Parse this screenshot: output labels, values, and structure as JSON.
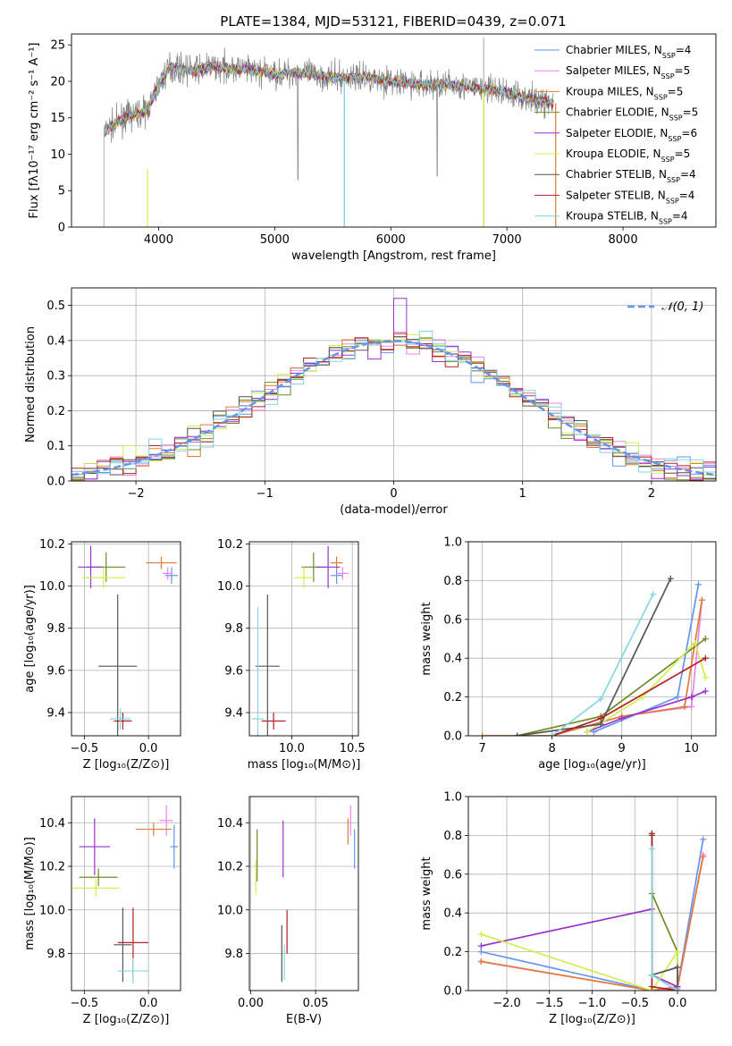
{
  "figure_title": "PLATE=1384, MJD=53121, FIBERID=0439, z=0.071",
  "legend_entries": [
    {
      "label": "Chabrier MILES, N",
      "sub": "SSP",
      "suffix": "=4",
      "color": "#6495ed"
    },
    {
      "label": "Salpeter MILES, N",
      "sub": "SSP",
      "suffix": "=5",
      "color": "#ee82ee"
    },
    {
      "label": "Kroupa MILES, N",
      "sub": "SSP",
      "suffix": "=5",
      "color": "#e07b39"
    },
    {
      "label": "Chabrier ELODIE, N",
      "sub": "SSP",
      "suffix": "=5",
      "color": "#6b8e23"
    },
    {
      "label": "Salpeter ELODIE, N",
      "sub": "SSP",
      "suffix": "=6",
      "color": "#9932cc"
    },
    {
      "label": "Kroupa ELODIE, N",
      "sub": "SSP",
      "suffix": "=5",
      "color": "#d4ed50"
    },
    {
      "label": "Chabrier STELIB, N",
      "sub": "SSP",
      "suffix": "=4",
      "color": "#555555"
    },
    {
      "label": "Salpeter STELIB, N",
      "sub": "SSP",
      "suffix": "=4",
      "color": "#b22222"
    },
    {
      "label": "Kroupa STELIB, N",
      "sub": "SSP",
      "suffix": "=4",
      "color": "#87d7e0"
    }
  ],
  "chart_data": [
    {
      "id": "spectrum",
      "type": "line",
      "xlabel": "wavelength [Angstrom, rest frame]",
      "ylabel": "Flux [fλ10⁻¹⁷ erg cm⁻² s⁻¹ A⁻¹]",
      "xlim": [
        3250,
        8800
      ],
      "ylim": [
        0,
        26.5
      ],
      "xticks": [
        4000,
        5000,
        6000,
        7000,
        8000
      ],
      "yticks": [
        0,
        5,
        10,
        15,
        20,
        25
      ],
      "grid": false,
      "legend_position": "top-right",
      "continuum_x": [
        3530,
        3700,
        3900,
        4000,
        4100,
        4300,
        4500,
        4800,
        5000,
        5200,
        5500,
        5800,
        6000,
        6200,
        6500,
        6800,
        7000,
        7200,
        7400
      ],
      "continuum_y": [
        13,
        15,
        16,
        19.5,
        22,
        21.5,
        22,
        21.5,
        21,
        21.3,
        20.5,
        20.6,
        20,
        19.6,
        19.6,
        19,
        18.5,
        17.6,
        17
      ]
    },
    {
      "id": "residuals",
      "type": "line",
      "xlabel": "(data-model)/error",
      "ylabel": "Normed distribution",
      "xlim": [
        -2.5,
        2.5
      ],
      "ylim": [
        0,
        0.55
      ],
      "xticks": [
        -2,
        -1,
        0,
        1,
        2
      ],
      "yticks": [
        0.0,
        0.1,
        0.2,
        0.3,
        0.4,
        0.5
      ],
      "grid": true,
      "legend_position": "top-right",
      "reference_curve": {
        "label": "𝒩(0, 1)",
        "mean": 0,
        "sigma": 1,
        "color": "#6495ed"
      }
    },
    {
      "id": "age-vs-Z",
      "type": "scatter",
      "xlabel": "Z [log₁₀(Z/Z⊙)]",
      "ylabel": "age  [log₁₀(age/yr)]",
      "xlim": [
        -0.6,
        0.25
      ],
      "ylim": [
        9.29,
        10.21
      ],
      "xticks": [
        -0.5,
        0.0
      ],
      "yticks": [
        9.4,
        9.6,
        9.8,
        10.0,
        10.2
      ],
      "grid": true,
      "points": [
        {
          "series": "Chabrier MILES",
          "x": 0.18,
          "y": 10.05,
          "xerr": 0.05,
          "yerr": 0.04
        },
        {
          "series": "Salpeter MILES",
          "x": 0.15,
          "y": 10.06,
          "xerr": 0.04,
          "yerr": 0.03
        },
        {
          "series": "Kroupa MILES",
          "x": 0.1,
          "y": 10.11,
          "xerr": 0.12,
          "yerr": 0.03
        },
        {
          "series": "Chabrier ELODIE",
          "x": -0.33,
          "y": 10.09,
          "xerr": 0.15,
          "yerr": 0.07
        },
        {
          "series": "Salpeter ELODIE",
          "x": -0.45,
          "y": 10.09,
          "xerr": 0.1,
          "yerr": 0.1
        },
        {
          "series": "Kroupa ELODIE",
          "x": -0.35,
          "y": 10.04,
          "xerr": 0.17,
          "yerr": 0.05
        },
        {
          "series": "Chabrier STELIB",
          "x": -0.24,
          "y": 9.62,
          "xerr": 0.15,
          "yerr": 0.34
        },
        {
          "series": "Salpeter STELIB",
          "x": -0.2,
          "y": 9.36,
          "xerr": 0.07,
          "yerr": 0.04
        },
        {
          "series": "Kroupa STELIB",
          "x": -0.22,
          "y": 9.37,
          "xerr": 0.08,
          "yerr": 0.05
        }
      ]
    },
    {
      "id": "age-vs-mass",
      "type": "scatter",
      "xlabel": "mass [log₁₀(M/M⊙)]",
      "ylabel": "",
      "xlim": [
        9.65,
        10.55
      ],
      "ylim": [
        9.29,
        10.21
      ],
      "xticks": [
        10.0,
        10.5
      ],
      "yticks": [
        9.4,
        9.6,
        9.8,
        10.0,
        10.2
      ],
      "grid": true,
      "points": [
        {
          "series": "Chabrier MILES",
          "x": 10.37,
          "y": 10.05,
          "xerr": 0.05,
          "yerr": 0.04
        },
        {
          "series": "Salpeter MILES",
          "x": 10.42,
          "y": 10.06,
          "xerr": 0.05,
          "yerr": 0.03
        },
        {
          "series": "Kroupa MILES",
          "x": 10.37,
          "y": 10.11,
          "xerr": 0.05,
          "yerr": 0.03
        },
        {
          "series": "Chabrier ELODIE",
          "x": 10.18,
          "y": 10.09,
          "xerr": 0.1,
          "yerr": 0.07
        },
        {
          "series": "Salpeter ELODIE",
          "x": 10.3,
          "y": 10.09,
          "xerr": 0.1,
          "yerr": 0.1
        },
        {
          "series": "Kroupa ELODIE",
          "x": 10.1,
          "y": 10.04,
          "xerr": 0.08,
          "yerr": 0.05
        },
        {
          "series": "Chabrier STELIB",
          "x": 9.8,
          "y": 9.62,
          "xerr": 0.1,
          "yerr": 0.34
        },
        {
          "series": "Salpeter STELIB",
          "x": 9.85,
          "y": 9.36,
          "xerr": 0.1,
          "yerr": 0.04
        },
        {
          "series": "Kroupa STELIB",
          "x": 9.72,
          "y": 9.37,
          "xerr": 0.05,
          "yerr": 0.53
        }
      ]
    },
    {
      "id": "weight-vs-age",
      "type": "line",
      "xlabel": "age  [log₁₀(age/yr)]",
      "ylabel": "mass weight",
      "xlim": [
        6.8,
        10.35
      ],
      "ylim": [
        0,
        1.0
      ],
      "xticks": [
        7,
        8,
        9,
        10
      ],
      "yticks": [
        0.0,
        0.2,
        0.4,
        0.6,
        0.8,
        1.0
      ],
      "grid": true,
      "series": [
        {
          "name": "Chabrier MILES",
          "x": [
            8.6,
            9.8,
            10.1
          ],
          "y": [
            0.02,
            0.2,
            0.78
          ]
        },
        {
          "name": "Salpeter MILES",
          "x": [
            8.0,
            9.0,
            10.0,
            10.15
          ],
          "y": [
            0.0,
            0.1,
            0.15,
            0.7
          ]
        },
        {
          "name": "Kroupa MILES",
          "x": [
            7.0,
            8.0,
            9.0,
            9.9,
            10.15
          ],
          "y": [
            0.0,
            0.0,
            0.1,
            0.15,
            0.7
          ]
        },
        {
          "name": "Chabrier ELODIE",
          "x": [
            7.5,
            8.7,
            10.2
          ],
          "y": [
            0.0,
            0.1,
            0.5
          ]
        },
        {
          "name": "Salpeter ELODIE",
          "x": [
            8.5,
            9.0,
            10.0,
            10.2
          ],
          "y": [
            0.02,
            0.09,
            0.2,
            0.23
          ]
        },
        {
          "name": "Kroupa ELODIE",
          "x": [
            8.5,
            9.3,
            10.05,
            10.2
          ],
          "y": [
            0.02,
            0.2,
            0.48,
            0.3
          ]
        },
        {
          "name": "Chabrier STELIB",
          "x": [
            7.5,
            8.7,
            9.7
          ],
          "y": [
            0.0,
            0.06,
            0.81
          ]
        },
        {
          "name": "Salpeter STELIB",
          "x": [
            8.0,
            8.7,
            10.2
          ],
          "y": [
            0.0,
            0.09,
            0.4
          ]
        },
        {
          "name": "Kroupa STELIB",
          "x": [
            8.0,
            8.7,
            9.45
          ],
          "y": [
            0.0,
            0.19,
            0.73
          ]
        }
      ]
    },
    {
      "id": "mass-vs-Z",
      "type": "scatter",
      "xlabel": "Z [log₁₀(Z/Z⊙)]",
      "ylabel": "mass [log₁₀(M/M⊙)]",
      "xlim": [
        -0.6,
        0.25
      ],
      "ylim": [
        9.63,
        10.52
      ],
      "xticks": [
        -0.5,
        0.0
      ],
      "yticks": [
        9.8,
        10.0,
        10.2,
        10.4
      ],
      "grid": true,
      "points": [
        {
          "series": "Chabrier MILES",
          "x": 0.2,
          "y": 10.29,
          "xerr": 0.03,
          "yerr": 0.1
        },
        {
          "series": "Salpeter MILES",
          "x": 0.14,
          "y": 10.41,
          "xerr": 0.05,
          "yerr": 0.07
        },
        {
          "series": "Kroupa MILES",
          "x": 0.04,
          "y": 10.37,
          "xerr": 0.14,
          "yerr": 0.03
        },
        {
          "series": "Chabrier ELODIE",
          "x": -0.39,
          "y": 10.15,
          "xerr": 0.15,
          "yerr": 0.04
        },
        {
          "series": "Salpeter ELODIE",
          "x": -0.42,
          "y": 10.29,
          "xerr": 0.12,
          "yerr": 0.13
        },
        {
          "series": "Kroupa ELODIE",
          "x": -0.41,
          "y": 10.1,
          "xerr": 0.18,
          "yerr": 0.04
        },
        {
          "series": "Chabrier STELIB",
          "x": -0.2,
          "y": 9.84,
          "xerr": 0.07,
          "yerr": 0.17
        },
        {
          "series": "Salpeter STELIB",
          "x": -0.12,
          "y": 9.85,
          "xerr": 0.12,
          "yerr": 0.16
        },
        {
          "series": "Kroupa STELIB",
          "x": -0.12,
          "y": 9.72,
          "xerr": 0.12,
          "yerr": 0.06
        }
      ]
    },
    {
      "id": "mass-vs-EBV",
      "type": "scatter",
      "xlabel": "E(B-V)",
      "ylabel": "",
      "xlim": [
        -0.001,
        0.083
      ],
      "ylim": [
        9.63,
        10.52
      ],
      "xticks": [
        0.0,
        0.05
      ],
      "tick_labels": [
        "0.00",
        "0.05"
      ],
      "yticks": [
        9.8,
        10.0,
        10.2,
        10.4
      ],
      "grid": true,
      "points": [
        {
          "series": "Chabrier MILES",
          "x": 0.08,
          "y": 10.28,
          "yerr": 0.09
        },
        {
          "series": "Salpeter MILES",
          "x": 0.077,
          "y": 10.41,
          "yerr": 0.07
        },
        {
          "series": "Kroupa MILES",
          "x": 0.075,
          "y": 10.36,
          "yerr": 0.06
        },
        {
          "series": "Chabrier ELODIE",
          "x": 0.005,
          "y": 10.25,
          "yerr": 0.12
        },
        {
          "series": "Salpeter ELODIE",
          "x": 0.025,
          "y": 10.28,
          "yerr": 0.13
        },
        {
          "series": "Kroupa ELODIE",
          "x": 0.004,
          "y": 10.15,
          "yerr": 0.08
        },
        {
          "series": "Chabrier STELIB",
          "x": 0.024,
          "y": 9.8,
          "yerr": 0.13
        },
        {
          "series": "Salpeter STELIB",
          "x": 0.028,
          "y": 9.9,
          "yerr": 0.1
        },
        {
          "series": "Kroupa STELIB",
          "x": 0.026,
          "y": 9.76,
          "yerr": 0.08
        }
      ]
    },
    {
      "id": "weight-vs-Z",
      "type": "line",
      "xlabel": "Z [log₁₀(Z/Z⊙)]",
      "ylabel": "mass weight",
      "xlim": [
        -2.45,
        0.45
      ],
      "ylim": [
        0,
        1.0
      ],
      "xticks": [
        -2.0,
        -1.5,
        -1.0,
        -0.5,
        0.0
      ],
      "tick_labels": [
        "−2.0",
        "−1.5",
        "−1.0",
        "−0.5",
        "0.0"
      ],
      "yticks": [
        0.0,
        0.2,
        0.4,
        0.6,
        0.8,
        1.0
      ],
      "grid": true,
      "series": [
        {
          "name": "Chabrier MILES",
          "x": [
            -2.3,
            -0.3,
            0.0,
            0.3
          ],
          "y": [
            0.2,
            0.0,
            0.02,
            0.78
          ]
        },
        {
          "name": "Salpeter MILES",
          "x": [
            -2.3,
            -0.3,
            0.0,
            0.3
          ],
          "y": [
            0.15,
            0.0,
            0.01,
            0.7
          ]
        },
        {
          "name": "Kroupa MILES",
          "x": [
            -2.3,
            -0.3,
            0.0,
            0.3
          ],
          "y": [
            0.15,
            0.0,
            0.02,
            0.69
          ]
        },
        {
          "name": "Chabrier ELODIE",
          "x": [
            -0.3,
            -0.3,
            0.0,
            0.0
          ],
          "y": [
            0.08,
            0.5,
            0.2,
            0.0
          ]
        },
        {
          "name": "Salpeter ELODIE",
          "x": [
            -2.3,
            -0.3,
            -0.3,
            0.0
          ],
          "y": [
            0.23,
            0.42,
            0.08,
            0.02
          ]
        },
        {
          "name": "Kroupa ELODIE",
          "x": [
            -2.3,
            -0.3,
            0.0,
            0.0
          ],
          "y": [
            0.29,
            0.0,
            0.2,
            0.0
          ]
        },
        {
          "name": "Chabrier STELIB",
          "x": [
            -0.3,
            -0.3,
            0.0,
            0.0
          ],
          "y": [
            0.8,
            0.08,
            0.12,
            0.0
          ]
        },
        {
          "name": "Salpeter STELIB",
          "x": [
            -0.3,
            -0.3,
            0.0
          ],
          "y": [
            0.81,
            0.02,
            0.0
          ]
        },
        {
          "name": "Kroupa STELIB",
          "x": [
            -0.3,
            -0.3,
            0.0
          ],
          "y": [
            0.73,
            0.08,
            0.0
          ]
        }
      ]
    }
  ]
}
